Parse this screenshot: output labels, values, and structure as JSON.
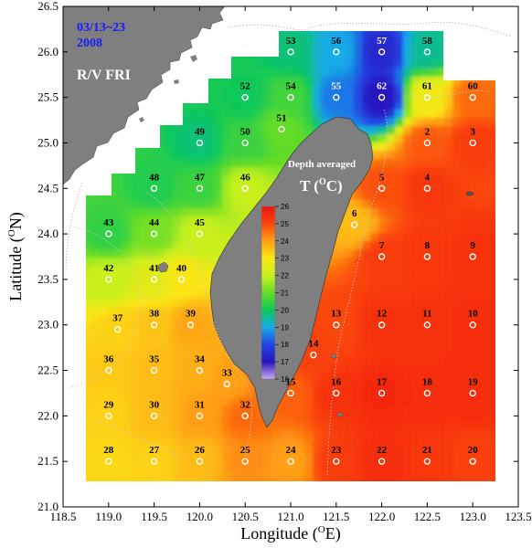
{
  "header": {
    "cruise_dates": "03/13~23",
    "cruise_year": "2008",
    "vessel": "R/V FRI"
  },
  "axes": {
    "xlabel": "Longitude (",
    "xlabel_sup": "O",
    "xlabel_end": "E)",
    "ylabel": "Latitude (",
    "ylabel_sup": "O",
    "ylabel_end": "N)",
    "x_ticks": [
      "118.5",
      "119.0",
      "119.5",
      "120.0",
      "120.5",
      "121.0",
      "121.5",
      "122.0",
      "122.5",
      "123.0",
      "123.5"
    ],
    "y_ticks": [
      "21.0",
      "21.5",
      "22.0",
      "22.5",
      "23.0",
      "23.5",
      "24.0",
      "24.5",
      "25.0",
      "25.5",
      "26.0",
      "26.5"
    ]
  },
  "colorbar": {
    "title_line1": "Depth averaged",
    "title_var": "T (",
    "title_sup": "O",
    "title_end": "C)",
    "ticks": [
      "26",
      "25",
      "24",
      "23",
      "22",
      "21",
      "20",
      "19",
      "18",
      "17",
      "16"
    ]
  },
  "colors": {
    "land": "#7f7f7f",
    "date_text": "#1a1aff",
    "station_marker": "#ffffff"
  },
  "chart_data": {
    "type": "heatmap",
    "title": "",
    "xlabel": "Longitude (OE)",
    "ylabel": "Latitude (ON)",
    "xlim": [
      118.5,
      123.5
    ],
    "ylim": [
      21.0,
      26.5
    ],
    "value_range": [
      16,
      26
    ],
    "stations": [
      {
        "id": "2",
        "lon": 122.5,
        "lat": 25.0,
        "t": 24.8
      },
      {
        "id": "3",
        "lon": 123.0,
        "lat": 25.0,
        "t": 25.2
      },
      {
        "id": "4",
        "lon": 122.5,
        "lat": 24.5,
        "t": 25.3
      },
      {
        "id": "5",
        "lon": 122.0,
        "lat": 24.5,
        "t": 24.9
      },
      {
        "id": "6",
        "lon": 121.7,
        "lat": 24.1,
        "t": 23.6
      },
      {
        "id": "7",
        "lon": 122.0,
        "lat": 23.75,
        "t": 25.2
      },
      {
        "id": "8",
        "lon": 122.5,
        "lat": 23.75,
        "t": 25.3
      },
      {
        "id": "9",
        "lon": 123.0,
        "lat": 23.75,
        "t": 25.4
      },
      {
        "id": "10",
        "lon": 123.0,
        "lat": 23.0,
        "t": 25.5
      },
      {
        "id": "11",
        "lon": 122.5,
        "lat": 23.0,
        "t": 25.4
      },
      {
        "id": "12",
        "lon": 122.0,
        "lat": 23.0,
        "t": 25.4
      },
      {
        "id": "13",
        "lon": 121.5,
        "lat": 23.0,
        "t": 25.0
      },
      {
        "id": "14",
        "lon": 121.25,
        "lat": 22.67,
        "t": 25.1
      },
      {
        "id": "15",
        "lon": 121.0,
        "lat": 22.25,
        "t": 24.7
      },
      {
        "id": "16",
        "lon": 121.5,
        "lat": 22.25,
        "t": 25.4
      },
      {
        "id": "17",
        "lon": 122.0,
        "lat": 22.25,
        "t": 25.6
      },
      {
        "id": "18",
        "lon": 122.5,
        "lat": 22.25,
        "t": 25.5
      },
      {
        "id": "19",
        "lon": 123.0,
        "lat": 22.25,
        "t": 25.5
      },
      {
        "id": "20",
        "lon": 123.0,
        "lat": 21.5,
        "t": 25.1
      },
      {
        "id": "21",
        "lon": 122.5,
        "lat": 21.5,
        "t": 25.3
      },
      {
        "id": "22",
        "lon": 122.0,
        "lat": 21.5,
        "t": 25.5
      },
      {
        "id": "23",
        "lon": 121.5,
        "lat": 21.5,
        "t": 25.2
      },
      {
        "id": "24",
        "lon": 121.0,
        "lat": 21.5,
        "t": 24.0
      },
      {
        "id": "25",
        "lon": 120.5,
        "lat": 21.5,
        "t": 24.2
      },
      {
        "id": "26",
        "lon": 120.0,
        "lat": 21.5,
        "t": 23.6
      },
      {
        "id": "27",
        "lon": 119.5,
        "lat": 21.5,
        "t": 23.3
      },
      {
        "id": "28",
        "lon": 119.0,
        "lat": 21.5,
        "t": 23.2
      },
      {
        "id": "29",
        "lon": 119.0,
        "lat": 22.0,
        "t": 23.3
      },
      {
        "id": "30",
        "lon": 119.5,
        "lat": 22.0,
        "t": 23.6
      },
      {
        "id": "31",
        "lon": 120.0,
        "lat": 22.0,
        "t": 24.0
      },
      {
        "id": "32",
        "lon": 120.5,
        "lat": 22.0,
        "t": 24.6
      },
      {
        "id": "33",
        "lon": 120.3,
        "lat": 22.35,
        "t": 24.0
      },
      {
        "id": "34",
        "lon": 120.0,
        "lat": 22.5,
        "t": 23.8
      },
      {
        "id": "35",
        "lon": 119.5,
        "lat": 22.5,
        "t": 23.6
      },
      {
        "id": "36",
        "lon": 119.0,
        "lat": 22.5,
        "t": 23.4
      },
      {
        "id": "37",
        "lon": 119.1,
        "lat": 22.95,
        "t": 23.3
      },
      {
        "id": "38",
        "lon": 119.5,
        "lat": 23.0,
        "t": 23.5
      },
      {
        "id": "39",
        "lon": 119.9,
        "lat": 23.0,
        "t": 23.9
      },
      {
        "id": "40",
        "lon": 119.8,
        "lat": 23.5,
        "t": 23.0
      },
      {
        "id": "41",
        "lon": 119.5,
        "lat": 23.5,
        "t": 22.5
      },
      {
        "id": "42",
        "lon": 119.0,
        "lat": 23.5,
        "t": 22.0
      },
      {
        "id": "43",
        "lon": 119.0,
        "lat": 24.0,
        "t": 20.4
      },
      {
        "id": "44",
        "lon": 119.5,
        "lat": 24.0,
        "t": 21.2
      },
      {
        "id": "45",
        "lon": 120.0,
        "lat": 24.0,
        "t": 22.0
      },
      {
        "id": "46",
        "lon": 120.5,
        "lat": 24.5,
        "t": 22.0
      },
      {
        "id": "47",
        "lon": 120.0,
        "lat": 24.5,
        "t": 20.5
      },
      {
        "id": "48",
        "lon": 119.5,
        "lat": 24.5,
        "t": 20.2
      },
      {
        "id": "49",
        "lon": 120.0,
        "lat": 25.0,
        "t": 19.8
      },
      {
        "id": "50",
        "lon": 120.5,
        "lat": 25.0,
        "t": 20.5
      },
      {
        "id": "51",
        "lon": 120.9,
        "lat": 25.15,
        "t": 21.0
      },
      {
        "id": "52",
        "lon": 120.5,
        "lat": 25.5,
        "t": 20.0
      },
      {
        "id": "53",
        "lon": 121.0,
        "lat": 26.0,
        "t": 19.8
      },
      {
        "id": "54",
        "lon": 121.0,
        "lat": 25.5,
        "t": 20.6
      },
      {
        "id": "55",
        "lon": 121.5,
        "lat": 25.5,
        "t": 18.5
      },
      {
        "id": "56",
        "lon": 121.5,
        "lat": 26.0,
        "t": 19.0
      },
      {
        "id": "57",
        "lon": 122.0,
        "lat": 26.0,
        "t": 17.4
      },
      {
        "id": "58",
        "lon": 122.5,
        "lat": 26.0,
        "t": 19.6
      },
      {
        "id": "60",
        "lon": 123.0,
        "lat": 25.5,
        "t": 24.6
      },
      {
        "id": "61",
        "lon": 122.5,
        "lat": 25.5,
        "t": 22.8
      },
      {
        "id": "62",
        "lon": 122.0,
        "lat": 25.5,
        "t": 17.0
      }
    ]
  }
}
